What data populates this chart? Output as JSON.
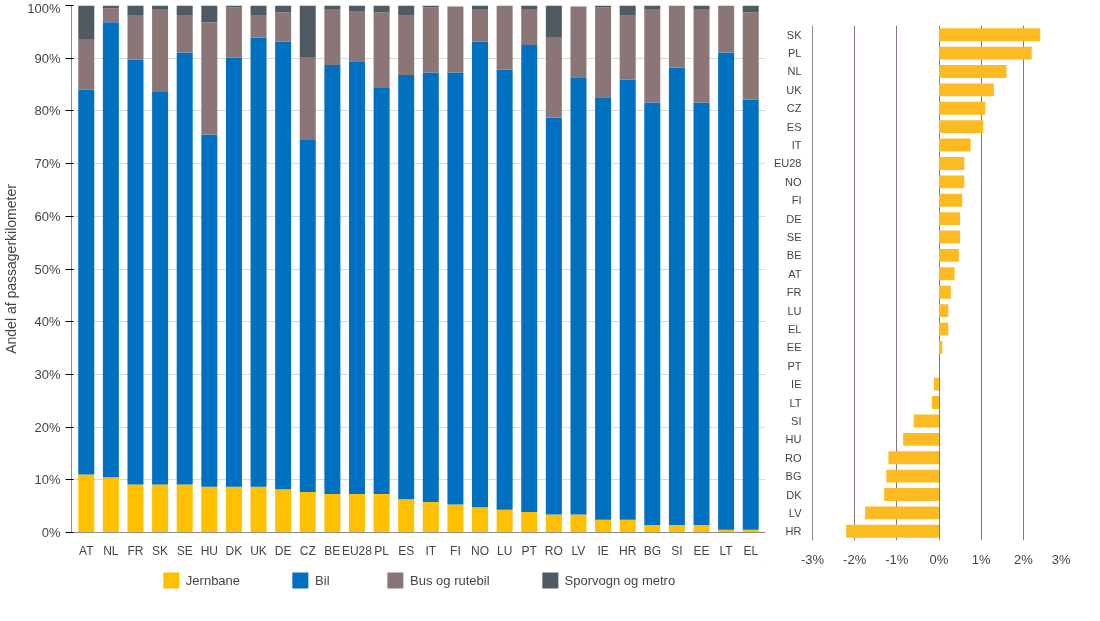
{
  "chart_data": [
    {
      "type": "bar",
      "stacked": true,
      "ylabel": "Andel af passagerkilometer",
      "categories": [
        "AT",
        "NL",
        "FR",
        "SK",
        "SE",
        "HU",
        "DK",
        "UK",
        "DE",
        "CZ",
        "BE",
        "EU28",
        "PL",
        "ES",
        "IT",
        "FI",
        "NO",
        "LU",
        "PT",
        "RO",
        "LV",
        "IE",
        "HR",
        "BG",
        "SI",
        "EE",
        "LT",
        "EL"
      ],
      "series": [
        {
          "name": "Jernbane",
          "color": "#ffc000",
          "values": [
            11.0,
            10.5,
            9.1,
            9.1,
            9.1,
            8.7,
            8.7,
            8.7,
            8.2,
            7.7,
            7.3,
            7.3,
            7.3,
            6.3,
            5.8,
            5.3,
            4.8,
            4.3,
            3.9,
            3.4,
            3.4,
            2.4,
            2.4,
            1.4,
            1.4,
            1.4,
            0.5,
            0.5
          ]
        },
        {
          "name": "Bil",
          "color": "#0070c0",
          "values": [
            73.0,
            86.3,
            80.6,
            74.5,
            82.0,
            66.8,
            81.4,
            85.2,
            84.9,
            66.8,
            81.4,
            82.1,
            77.2,
            80.5,
            81.5,
            82.0,
            88.3,
            83.5,
            88.6,
            75.3,
            83.0,
            80.2,
            83.5,
            80.2,
            86.8,
            80.2,
            90.6,
            81.6
          ]
        },
        {
          "name": "Bus og rutebil",
          "color": "#8b7677",
          "values": [
            9.5,
            2.7,
            8.5,
            15.6,
            7.1,
            21.3,
            9.5,
            4.3,
            5.6,
            15.6,
            10.5,
            9.4,
            14.2,
            11.4,
            12.3,
            12.5,
            6.1,
            12.2,
            6.7,
            15.2,
            13.4,
            17.0,
            12.3,
            17.6,
            11.8,
            17.6,
            8.9,
            16.6
          ]
        },
        {
          "name": "Sporvogn og metro",
          "color": "#505a62",
          "values": [
            6.5,
            0.5,
            1.8,
            0.8,
            1.8,
            3.2,
            0.4,
            1.8,
            1.3,
            9.9,
            0.8,
            1.2,
            1.3,
            1.8,
            0.4,
            null,
            0.8,
            0.0,
            0.8,
            6.1,
            null,
            0.4,
            1.8,
            0.8,
            0.0,
            0.8,
            0.0,
            1.3
          ]
        }
      ],
      "ylim": [
        0,
        100
      ],
      "yticks": [
        {
          "value": 0,
          "label": "0%"
        },
        {
          "value": 10,
          "label": "10%"
        },
        {
          "value": 20,
          "label": "20%"
        },
        {
          "value": 30,
          "label": "30%"
        },
        {
          "value": 40,
          "label": "40%"
        },
        {
          "value": 50,
          "label": "50%"
        },
        {
          "value": 60,
          "label": "60%"
        },
        {
          "value": 70,
          "label": "70%"
        },
        {
          "value": 80,
          "label": "80%"
        },
        {
          "value": 90,
          "label": "90%"
        },
        {
          "value": 100,
          "label": "100%"
        }
      ],
      "grid": "y",
      "legend": "bottom"
    },
    {
      "type": "bar",
      "orientation": "horizontal",
      "categories": [
        "SK",
        "PL",
        "NL",
        "UK",
        "CZ",
        "ES",
        "IT",
        "EU28",
        "NO",
        "FI",
        "DE",
        "SE",
        "BE",
        "AT",
        "FR",
        "LU",
        "EL",
        "EE",
        "PT",
        "IE",
        "LT",
        "SI",
        "HU",
        "RO",
        "BG",
        "DK",
        "LV",
        "HR"
      ],
      "values": [
        2.4,
        2.2,
        1.6,
        1.3,
        1.1,
        1.05,
        0.75,
        0.6,
        0.6,
        0.55,
        0.5,
        0.5,
        0.47,
        0.37,
        0.28,
        0.22,
        0.22,
        0.08,
        0,
        -0.12,
        -0.17,
        -0.6,
        -0.85,
        -1.2,
        -1.25,
        -1.3,
        -1.75,
        -2.2
      ],
      "color": "#fbbb21",
      "xlim": [
        -3,
        3
      ],
      "xticks": [
        {
          "value": -3,
          "label": "-3%"
        },
        {
          "value": -2,
          "label": "-2%"
        },
        {
          "value": -1,
          "label": "-1%"
        },
        {
          "value": 0,
          "label": "0%"
        },
        {
          "value": 1,
          "label": "1%"
        },
        {
          "value": 2,
          "label": "2%"
        },
        {
          "value": 3,
          "label": "3%"
        }
      ],
      "grid": "x"
    }
  ]
}
